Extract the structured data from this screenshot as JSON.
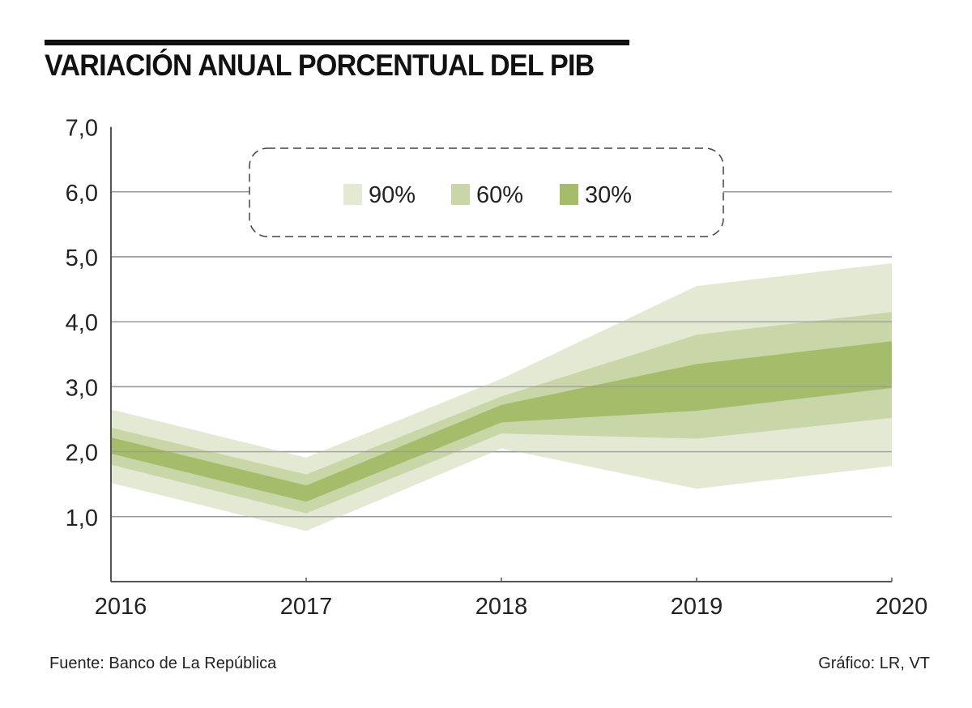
{
  "header": {
    "title": "VARIACIÓN ANUAL PORCENTUAL DEL PIB"
  },
  "footer": {
    "source": "Fuente: Banco de La República",
    "credit": "Gráfico: LR, VT"
  },
  "chart_data": {
    "type": "area",
    "subtype": "fan-chart",
    "title": "VARIACIÓN ANUAL PORCENTUAL DEL PIB",
    "xlabel": "",
    "ylabel": "",
    "categories": [
      "2016",
      "2017",
      "2018",
      "2019",
      "2020"
    ],
    "ylim": [
      0,
      7
    ],
    "yticks": [
      1,
      2,
      3,
      4,
      5,
      6,
      7
    ],
    "ytick_labels": [
      "1,0",
      "2,0",
      "3,0",
      "4,0",
      "5,0",
      "6,0",
      "7,0"
    ],
    "gridlines_at": [
      1,
      2,
      3,
      4,
      5,
      6
    ],
    "grid": true,
    "legend": {
      "placement": "top-center",
      "border": "dashed rounded",
      "entries": [
        "90%",
        "60%",
        "30%"
      ]
    },
    "series": [
      {
        "name": "90%",
        "color": "#e3e9d3",
        "upper": [
          2.65,
          1.91,
          3.12,
          4.55,
          4.9
        ],
        "lower": [
          1.52,
          0.78,
          2.05,
          1.43,
          1.78
        ]
      },
      {
        "name": "60%",
        "color": "#c9d7a8",
        "upper": [
          2.37,
          1.65,
          2.85,
          3.8,
          4.15
        ],
        "lower": [
          1.8,
          1.05,
          2.28,
          2.2,
          2.52
        ]
      },
      {
        "name": "30%",
        "color": "#a5bc6b",
        "upper": [
          2.22,
          1.48,
          2.72,
          3.35,
          3.7
        ],
        "lower": [
          1.97,
          1.23,
          2.45,
          2.63,
          2.98
        ]
      }
    ],
    "colors": {
      "grid": "#9a9a9a",
      "axis": "#555555",
      "legend_border": "#444444"
    }
  }
}
